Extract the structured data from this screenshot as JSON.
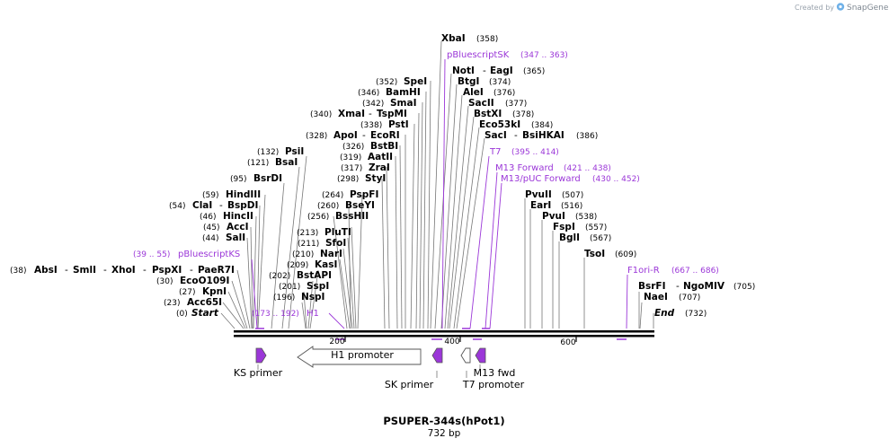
{
  "watermark": {
    "prefix": "Created by",
    "brand": "SnapGene"
  },
  "plasmid": {
    "name": "PSUPER-344s(hPot1)",
    "length": "732 bp"
  },
  "ruler": {
    "ticks": [
      "200",
      "400",
      "600"
    ]
  },
  "enzymes": {
    "start": {
      "pos": "(0)",
      "name": "Start"
    },
    "end": {
      "name": "End",
      "pos": "(732)"
    },
    "acc65i": {
      "pos": "(23)",
      "name": "Acc65I"
    },
    "kpni": {
      "pos": "(27)",
      "name": "KpnI"
    },
    "ecoo109i": {
      "pos": "(30)",
      "name": "EcoO109I"
    },
    "absi_group": {
      "pos": "(38)",
      "n1": "AbsI",
      "n2": "SmlI",
      "n3": "XhoI",
      "n4": "PspXI",
      "n5": "PaeR7I"
    },
    "sali": {
      "pos": "(44)",
      "name": "SalI"
    },
    "acci": {
      "pos": "(45)",
      "name": "AccI"
    },
    "hincii": {
      "pos": "(46)",
      "name": "HincII"
    },
    "clai_group": {
      "pos": "(54)",
      "n1": "ClaI",
      "n2": "BspDI"
    },
    "hindiii": {
      "pos": "(59)",
      "name": "HindIII"
    },
    "bsrdi": {
      "pos": "(95)",
      "name": "BsrDI"
    },
    "bsai": {
      "pos": "(121)",
      "name": "BsaI"
    },
    "psii": {
      "pos": "(132)",
      "name": "PsiI"
    },
    "nspi": {
      "pos": "(196)",
      "name": "NspI"
    },
    "sspi": {
      "pos": "(201)",
      "name": "SspI"
    },
    "bstapi": {
      "pos": "(202)",
      "name": "BstAPI"
    },
    "kasi": {
      "pos": "(209)",
      "name": "KasI"
    },
    "nari": {
      "pos": "(210)",
      "name": "NarI"
    },
    "sfoi": {
      "pos": "(211)",
      "name": "SfoI"
    },
    "pluti": {
      "pos": "(213)",
      "name": "PluTI"
    },
    "bsshii": {
      "pos": "(256)",
      "name": "BssHII"
    },
    "bseyi": {
      "pos": "(260)",
      "name": "BseYI"
    },
    "pspfi": {
      "pos": "(264)",
      "name": "PspFI"
    },
    "styi": {
      "pos": "(298)",
      "name": "StyI"
    },
    "zrai": {
      "pos": "(317)",
      "name": "ZraI"
    },
    "aatii": {
      "pos": "(319)",
      "name": "AatII"
    },
    "bstbi": {
      "pos": "(326)",
      "name": "BstBI"
    },
    "apoi_group": {
      "pos": "(328)",
      "n1": "ApoI",
      "n2": "EcoRI"
    },
    "psti": {
      "pos": "(338)",
      "name": "PstI"
    },
    "xmai_group": {
      "pos": "(340)",
      "n1": "XmaI",
      "n2": "TspMI"
    },
    "smai": {
      "pos": "(342)",
      "name": "SmaI"
    },
    "bamhi": {
      "pos": "(346)",
      "name": "BamHI"
    },
    "spei": {
      "pos": "(352)",
      "name": "SpeI"
    },
    "xbai": {
      "name": "XbaI",
      "pos": "(358)"
    },
    "noti_group": {
      "n1": "NotI",
      "n2": "EagI",
      "pos": "(365)"
    },
    "btgi": {
      "name": "BtgI",
      "pos": "(374)"
    },
    "alei": {
      "name": "AleI",
      "pos": "(376)"
    },
    "sacii": {
      "name": "SacII",
      "pos": "(377)"
    },
    "bstxi": {
      "name": "BstXI",
      "pos": "(378)"
    },
    "eco53ki": {
      "name": "Eco53kI",
      "pos": "(384)"
    },
    "saci_group": {
      "n1": "SacI",
      "n2": "BsiHKAI",
      "pos": "(386)"
    },
    "pvuii": {
      "name": "PvuII",
      "pos": "(507)"
    },
    "eari": {
      "name": "EarI",
      "pos": "(516)"
    },
    "pvui": {
      "name": "PvuI",
      "pos": "(538)"
    },
    "fspi": {
      "name": "FspI",
      "pos": "(557)"
    },
    "bgli": {
      "name": "BglI",
      "pos": "(567)"
    },
    "tsoi": {
      "name": "TsoI",
      "pos": "(609)"
    },
    "bsrfi_group": {
      "n1": "BsrFI",
      "n2": "NgoMIV",
      "pos": "(705)"
    },
    "naei": {
      "name": "NaeI",
      "pos": "(707)"
    }
  },
  "primers": {
    "pbluescriptks": {
      "range": "(39 .. 55)",
      "name": "pBluescriptKS"
    },
    "h1": {
      "range": "(173 .. 192)",
      "name": "H1"
    },
    "pbluescriptsk": {
      "name": "pBluescriptSK",
      "range": "(347 .. 363)"
    },
    "t7": {
      "name": "T7",
      "range": "(395 .. 414)"
    },
    "m13forward": {
      "name": "M13 Forward",
      "range": "(421 .. 438)"
    },
    "m13puc": {
      "name": "M13/pUC Forward",
      "range": "(430 .. 452)"
    },
    "f1ori": {
      "name": "F1ori-R",
      "range": "(667 .. 686)"
    }
  },
  "features": {
    "ks_primer": "KS primer",
    "h1_promoter": "H1 promoter",
    "sk_primer": "SK primer",
    "t7_promoter": "T7 promoter",
    "m13_fwd": "M13 fwd"
  },
  "colors": {
    "primer": "#9b37d8",
    "backbone": "#000000",
    "feature_fill": "#9b37d8",
    "arrow_outline": "#555555",
    "watermark": "#9aa3ad"
  }
}
